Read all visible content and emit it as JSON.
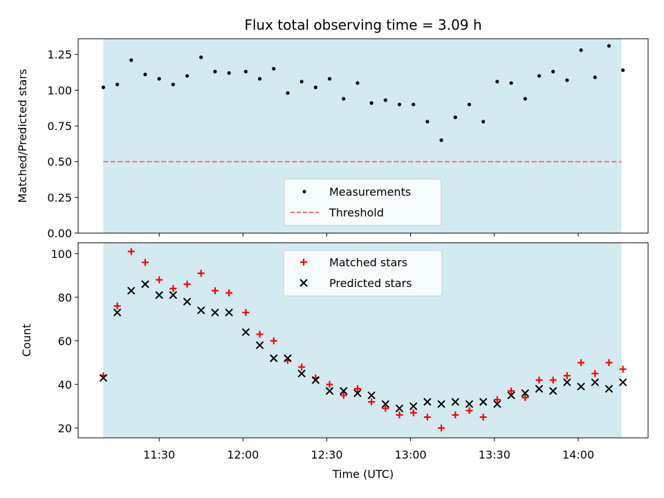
{
  "chart_data": [
    {
      "id": "ratio",
      "type": "scatter",
      "title": "Flux total observing time = 3.09 h",
      "xlabel": "",
      "ylabel": "Matched/Predicted stars",
      "ylim": [
        0,
        1.36
      ],
      "yticks": [
        "0.00",
        "0.25",
        "0.50",
        "0.75",
        "1.00",
        "1.25"
      ],
      "ytick_values": [
        0,
        0.25,
        0.5,
        0.75,
        1.0,
        1.25
      ],
      "threshold": 0.5,
      "shade_color": "#d3eaf0",
      "threshold_color": "#f07070",
      "legend": {
        "location": "bottom-center",
        "items": [
          "Measurements",
          "Threshold"
        ]
      },
      "series": [
        {
          "name": "Measurements",
          "color": "#000000",
          "values": [
            1.02,
            1.04,
            1.21,
            1.11,
            1.08,
            1.04,
            1.1,
            1.23,
            1.13,
            1.12,
            1.13,
            1.08,
            1.15,
            0.98,
            1.06,
            1.02,
            1.08,
            0.94,
            1.05,
            0.91,
            0.93,
            0.9,
            0.9,
            0.78,
            0.65,
            0.81,
            0.9,
            0.78,
            1.06,
            1.05,
            0.94,
            1.1,
            1.13,
            1.07,
            1.28,
            1.09,
            1.31,
            1.14
          ]
        }
      ]
    },
    {
      "id": "counts",
      "type": "scatter",
      "title": "",
      "xlabel": "Time (UTC)",
      "ylabel": "Count",
      "ylim": [
        15.5,
        105
      ],
      "yticks": [
        "20",
        "40",
        "60",
        "80",
        "100"
      ],
      "ytick_values": [
        20,
        40,
        60,
        80,
        100
      ],
      "xticks": [
        "11:30",
        "12:00",
        "12:30",
        "13:00",
        "13:30",
        "14:00"
      ],
      "xtick_minutes": [
        690,
        720,
        750,
        780,
        810,
        840
      ],
      "xlim_minutes": [
        661,
        865
      ],
      "shade_minutes": [
        670,
        855.5
      ],
      "legend": {
        "location": "top-center",
        "items": [
          "Matched stars",
          "Predicted stars"
        ]
      },
      "series": [
        {
          "name": "Matched stars",
          "marker": "plus",
          "color": "#ff0000",
          "values": [
            44,
            76,
            101,
            96,
            88,
            84,
            86,
            91,
            83,
            82,
            73,
            63,
            60,
            51,
            48,
            43,
            40,
            35,
            38,
            32,
            29,
            26,
            27,
            25,
            20,
            26,
            28,
            25,
            33,
            37,
            34,
            42,
            42,
            44,
            50,
            45,
            50,
            47
          ]
        },
        {
          "name": "Predicted stars",
          "marker": "x",
          "color": "#000000",
          "values": [
            43,
            73,
            83,
            86,
            81,
            81,
            78,
            74,
            73,
            73,
            64,
            58,
            52,
            52,
            45,
            42,
            37,
            37,
            36,
            35,
            31,
            29,
            30,
            32,
            31,
            32,
            31,
            32,
            31,
            35,
            36,
            38,
            37,
            41,
            39,
            41,
            38,
            41
          ]
        }
      ],
      "x_minutes": [
        670,
        675,
        680,
        685,
        690,
        695,
        700,
        705,
        710,
        715,
        721,
        726,
        731,
        736,
        741,
        746,
        751,
        756,
        761,
        766,
        771,
        776,
        781,
        786,
        791,
        796,
        801,
        806,
        811,
        816,
        821,
        826,
        831,
        836,
        841,
        846,
        851,
        856
      ]
    }
  ]
}
